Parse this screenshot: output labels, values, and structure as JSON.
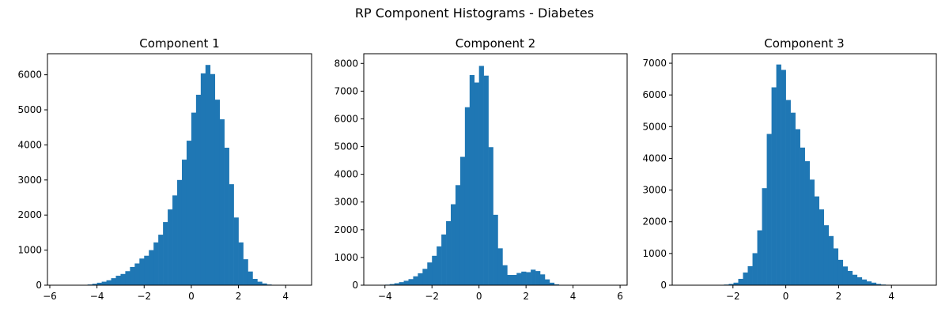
{
  "figure": {
    "title": "RP Component Histograms - Diabetes"
  },
  "colors": {
    "bar": "#1f77b4",
    "axis": "#000000",
    "background": "#ffffff"
  },
  "chart_data": [
    {
      "type": "bar",
      "title": "Component 1",
      "xlabel": "",
      "ylabel": "",
      "grid": false,
      "xlim": [
        -6.1,
        5.1
      ],
      "ylim": [
        0,
        6600
      ],
      "xticks": [
        -6,
        -4,
        -2,
        0,
        2,
        4
      ],
      "yticks": [
        0,
        1000,
        2000,
        3000,
        4000,
        5000,
        6000
      ],
      "bin_start": -5.8,
      "bin_width": 0.2,
      "values": [
        0,
        0,
        0,
        0,
        0,
        2,
        5,
        20,
        40,
        70,
        100,
        140,
        200,
        270,
        320,
        400,
        520,
        620,
        760,
        840,
        1000,
        1220,
        1440,
        1800,
        2160,
        2560,
        3000,
        3580,
        4120,
        4920,
        5430,
        6040,
        6280,
        6020,
        5290,
        4730,
        3920,
        2880,
        1930,
        1220,
        740,
        390,
        180,
        100,
        50,
        20,
        8,
        3,
        1,
        0,
        0,
        0,
        0
      ]
    },
    {
      "type": "bar",
      "title": "Component 2",
      "xlabel": "",
      "ylabel": "",
      "grid": false,
      "xlim": [
        -4.9,
        6.3
      ],
      "ylim": [
        0,
        8350
      ],
      "xticks": [
        -4,
        -2,
        0,
        2,
        4,
        6
      ],
      "yticks": [
        0,
        1000,
        2000,
        3000,
        4000,
        5000,
        6000,
        7000,
        8000
      ],
      "bin_start": -4.6,
      "bin_width": 0.2,
      "values": [
        0,
        0,
        10,
        20,
        40,
        70,
        110,
        160,
        220,
        320,
        430,
        590,
        820,
        1060,
        1400,
        1830,
        2310,
        2920,
        3610,
        4630,
        6420,
        7580,
        7310,
        7910,
        7560,
        4980,
        2540,
        1330,
        720,
        370,
        370,
        440,
        490,
        470,
        560,
        510,
        390,
        210,
        90,
        30,
        10,
        5,
        2,
        0,
        0,
        0,
        0,
        0,
        0,
        0,
        0,
        0,
        0,
        0,
        0,
        0
      ]
    },
    {
      "type": "bar",
      "title": "Component 3",
      "xlabel": "",
      "ylabel": "",
      "grid": false,
      "xlim": [
        -4.3,
        5.7
      ],
      "ylim": [
        0,
        7300
      ],
      "xticks": [
        -2,
        0,
        2,
        4
      ],
      "yticks": [
        0,
        1000,
        2000,
        3000,
        4000,
        5000,
        6000,
        7000
      ],
      "bin_start": -3.6,
      "bin_width": 0.18,
      "values": [
        0,
        0,
        0,
        0,
        0,
        0,
        10,
        20,
        40,
        80,
        200,
        400,
        600,
        1010,
        1730,
        3060,
        4770,
        6240,
        6960,
        6790,
        5840,
        5440,
        4920,
        4340,
        3910,
        3330,
        2800,
        2390,
        1890,
        1550,
        1160,
        800,
        590,
        450,
        330,
        250,
        180,
        120,
        80,
        40,
        20,
        10,
        5,
        2,
        0,
        0,
        0,
        0,
        0,
        0
      ]
    }
  ]
}
